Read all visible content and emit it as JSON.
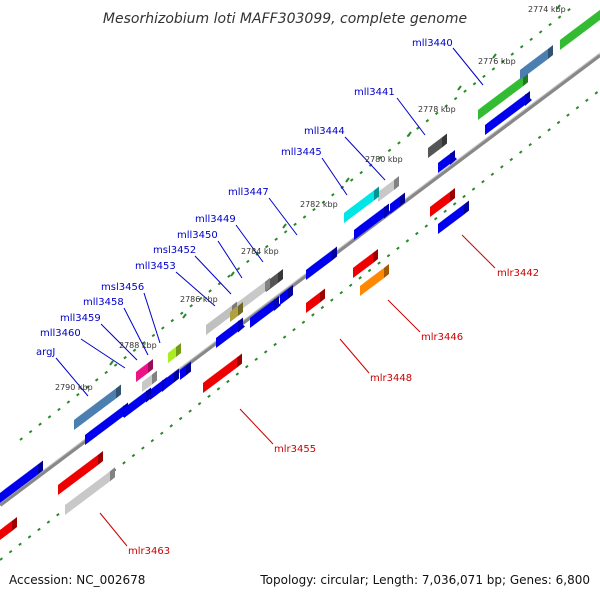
{
  "title": "Mesorhizobium loti MAFF303099, complete genome",
  "colors": {
    "backbone": "#888888",
    "tick": "#2a8a2a",
    "label_upper": "#0000cc",
    "label_lower": "#cc0000"
  },
  "ticks": [
    "2774 kbp",
    "2776 kbp",
    "2778 kbp",
    "2780 kbp",
    "2782 kbp",
    "2784 kbp",
    "2786 kbp",
    "2788 kbp",
    "2790 kbp"
  ],
  "upper_genes": [
    {
      "name": "mll3440",
      "color": "#33bb33"
    },
    {
      "name": "mll3441",
      "color": "#4a7fb0"
    },
    {
      "name": "mll3444",
      "color": "#555555"
    },
    {
      "name": "mll3445",
      "color": "#c8c8c8"
    },
    {
      "name": "mll3447",
      "color": "#00e5e5"
    },
    {
      "name": "mll3449",
      "color": "#0000ee"
    },
    {
      "name": "mll3450",
      "color": "#555555"
    },
    {
      "name": "msl3452",
      "color": "#c8c8c8"
    },
    {
      "name": "mll3453",
      "color": "#b0a040"
    },
    {
      "name": "msl3456",
      "color": "#aaee22"
    },
    {
      "name": "mll3458",
      "color": "#0000ee"
    },
    {
      "name": "mll3459",
      "color": "#ee1188"
    },
    {
      "name": "mll3460",
      "color": "#c8c8c8"
    },
    {
      "name": "argJ",
      "color": "#4a7fb0"
    }
  ],
  "lower_genes": [
    {
      "name": "mlr3442",
      "color": "#ee0000"
    },
    {
      "name": "mlr3446",
      "color": "#ff8800"
    },
    {
      "name": "mlr3448",
      "color": "#ee0000"
    },
    {
      "name": "mlr3455",
      "color": "#ee0000"
    },
    {
      "name": "mlr3463",
      "color": "#c8c8c8"
    }
  ],
  "footer": {
    "accession": "Accession: NC_002678",
    "summary": "Topology: circular; Length: 7,036,071 bp; Genes: 6,800"
  }
}
